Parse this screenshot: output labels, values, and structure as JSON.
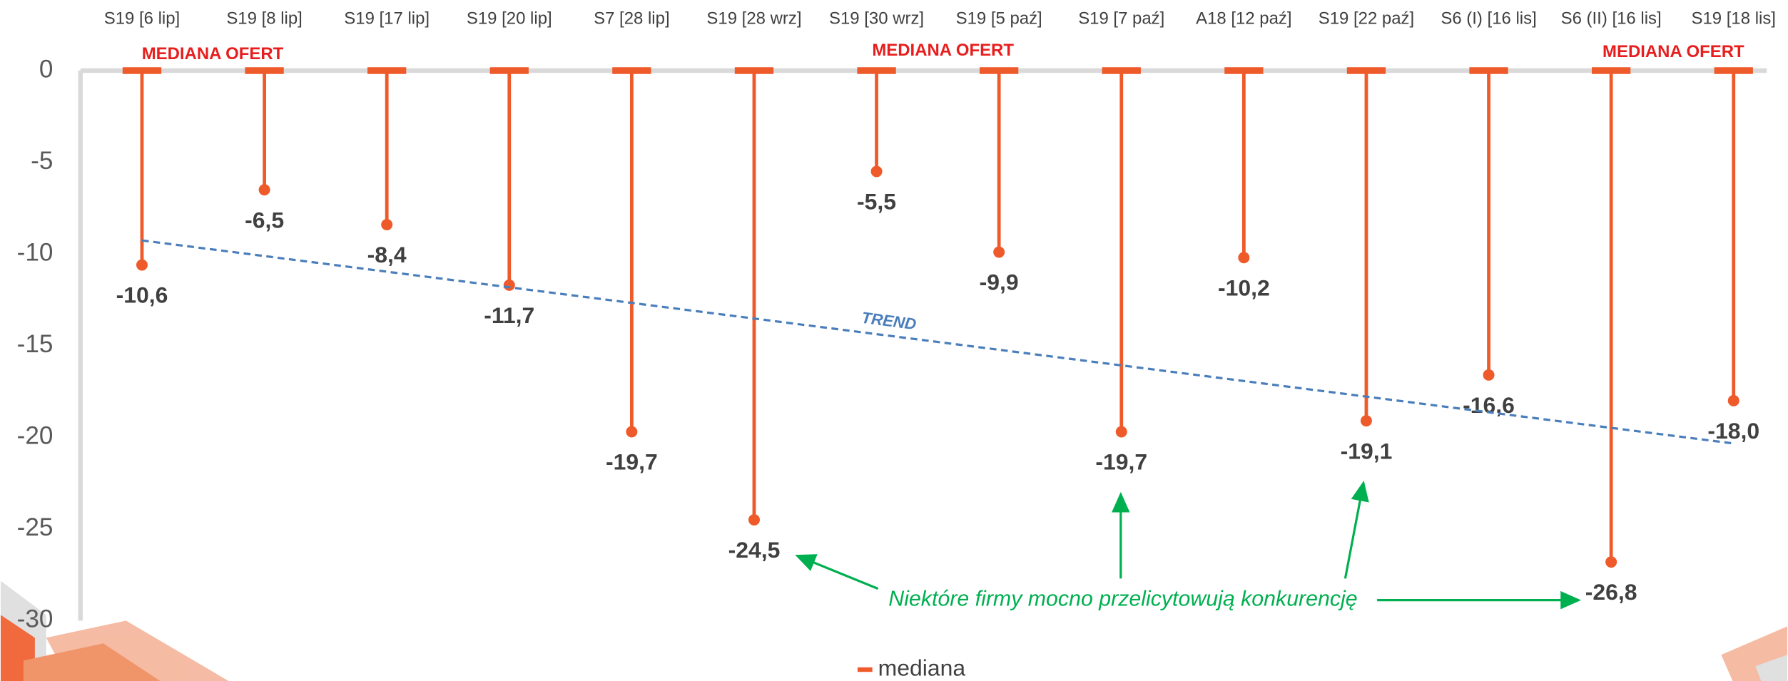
{
  "chart_data": {
    "type": "lollipop",
    "categories": [
      "S19 [6 lip]",
      "S19 [8 lip]",
      "S19 [17 lip]",
      "S19 [20 lip]",
      "S7 [28 lip]",
      "S19 [28 wrz]",
      "S19 [30 wrz]",
      "S19 [5 paź]",
      "S19 [7 paź]",
      "A18 [12 paź]",
      "S19 [22 paź]",
      "S6 (I) [16 lis]",
      "S6 (II) [16 lis]",
      "S19 [18 lis]"
    ],
    "series": [
      {
        "name": "mediana",
        "color": "#ef5a2a",
        "values": [
          -10.6,
          -6.5,
          -8.4,
          -11.7,
          -19.7,
          -24.5,
          -5.5,
          -9.9,
          -19.7,
          -10.2,
          -19.1,
          -16.6,
          -26.8,
          -18.0
        ],
        "value_labels": [
          "-10,6",
          "-6,5",
          "-8,4",
          "-11,7",
          "-19,7",
          "-24,5",
          "-5,5",
          "-9,9",
          "-19,7",
          "-10,2",
          "-19,1",
          "-16,6",
          "-26,8",
          "-18,0"
        ]
      }
    ],
    "ylim": [
      -30,
      0
    ],
    "yticks": [
      0,
      -5,
      -10,
      -15,
      -20,
      -25,
      -30
    ],
    "trend": {
      "label": "TREND",
      "color": "#4a7ebb"
    },
    "annotations": [
      "MEDIANA OFERT",
      "MEDIANA OFERT",
      "MEDIANA OFERT",
      "Niektóre firmy mocno przelicytowują konkurencję"
    ]
  }
}
